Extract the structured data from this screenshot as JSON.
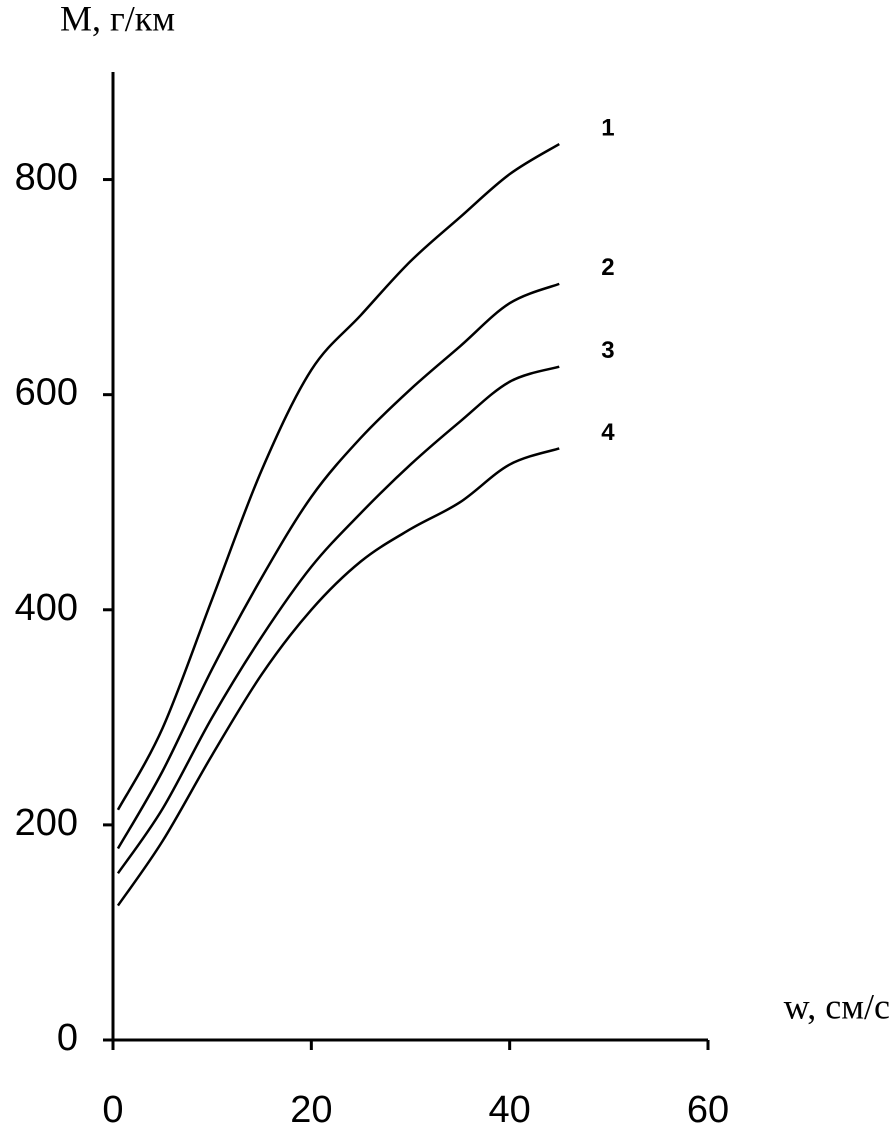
{
  "chart_data": {
    "type": "line",
    "y_label": "M, г/км",
    "x_label": "w, см/с",
    "x": [
      0.5,
      5,
      10,
      15,
      20,
      25,
      30,
      35,
      40,
      45
    ],
    "series": [
      {
        "name": "1",
        "color": "#000000",
        "values": [
          214,
          290,
          410,
          530,
          623,
          674,
          724,
          765,
          805,
          833
        ]
      },
      {
        "name": "2",
        "color": "#000000",
        "values": [
          178,
          250,
          345,
          430,
          505,
          560,
          605,
          645,
          685,
          703
        ]
      },
      {
        "name": "3",
        "color": "#000000",
        "values": [
          155,
          215,
          300,
          375,
          440,
          490,
          535,
          575,
          612,
          626
        ]
      },
      {
        "name": "4",
        "color": "#000000",
        "values": [
          125,
          185,
          265,
          340,
          400,
          445,
          475,
          500,
          535,
          550
        ]
      }
    ],
    "xlim": [
      0,
      60
    ],
    "xticks": [
      0,
      20,
      40,
      60
    ],
    "ylim": [
      0,
      900
    ],
    "yticks": [
      0,
      200,
      400,
      600,
      800
    ],
    "grid": false
  }
}
